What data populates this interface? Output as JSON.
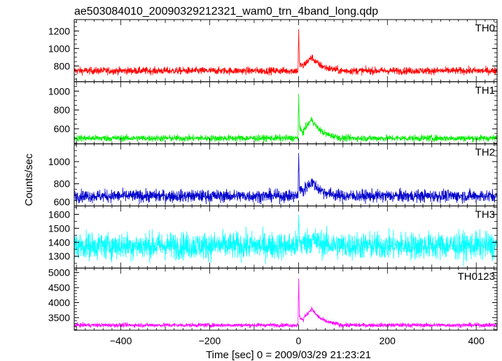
{
  "chart_data": {
    "type": "line",
    "title": "ae503084010_20090329212321_wam0_trn_4band_long.qdp",
    "xlabel": "Time [sec] 0 = 2009/03/29 21:23:21",
    "ylabel": "Counts/sec",
    "xlim": [
      -505,
      447
    ],
    "x_ticks": [
      -400,
      -200,
      0,
      200,
      400
    ],
    "grid": false,
    "panels": [
      {
        "name": "TH0",
        "color": "#ff0000",
        "ylim": [
          620,
          1330
        ],
        "y_ticks": [
          800,
          1000,
          1200
        ],
        "baseline": 745,
        "noise": 30,
        "peak": {
          "x": 0,
          "y": 1310
        },
        "afterglow": {
          "x": 30,
          "y": 900
        }
      },
      {
        "name": "TH1",
        "color": "#00ee00",
        "ylim": [
          440,
          1100
        ],
        "y_ticks": [
          600,
          800,
          1000
        ],
        "baseline": 500,
        "noise": 25,
        "peak": {
          "x": 0,
          "y": 1060
        },
        "afterglow": {
          "x": 30,
          "y": 700
        }
      },
      {
        "name": "TH2",
        "color": "#0000cc",
        "ylim": [
          600,
          1160
        ],
        "y_ticks": [
          600,
          800,
          1000
        ],
        "baseline": 690,
        "noise": 40,
        "peak": {
          "x": 0,
          "y": 1150
        },
        "afterglow": {
          "x": 30,
          "y": 820
        }
      },
      {
        "name": "TH3",
        "color": "#00ffff",
        "ylim": [
          1215,
          1660
        ],
        "y_ticks": [
          1300,
          1400,
          1500,
          1600
        ],
        "baseline": 1375,
        "noise": 70,
        "peak": {
          "x": 0,
          "y": 1640
        },
        "afterglow": {
          "x": 30,
          "y": 1420
        }
      },
      {
        "name": "TH0123",
        "color": "#ff00ff",
        "ylim": [
          3080,
          5150
        ],
        "y_ticks": [
          3500,
          4000,
          4500,
          5000
        ],
        "baseline": 3250,
        "noise": 50,
        "peak": {
          "x": 0,
          "y": 5100
        },
        "afterglow": {
          "x": 30,
          "y": 3800
        }
      }
    ]
  }
}
